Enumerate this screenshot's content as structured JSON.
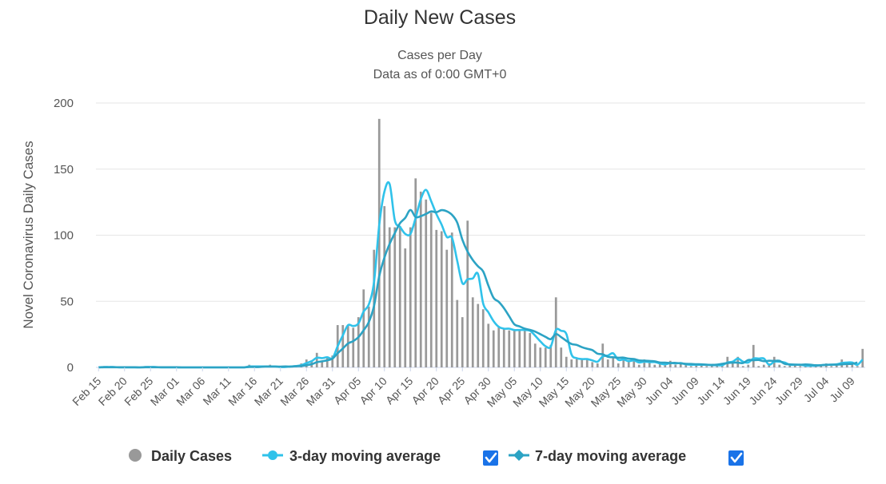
{
  "chart_data": {
    "type": "bar",
    "title": "Daily New Cases",
    "subtitle_lines": [
      "Cases per Day",
      "Data as of 0:00 GMT+0"
    ],
    "ylabel": "Novel Coronavirus Daily Cases",
    "xlabel": "",
    "ylim": [
      0,
      200
    ],
    "yticks": [
      0,
      50,
      100,
      150,
      200
    ],
    "x_tick_labels": [
      "Feb 15",
      "Feb 20",
      "Feb 25",
      "Mar 01",
      "Mar 06",
      "Mar 11",
      "Mar 16",
      "Mar 21",
      "Mar 26",
      "Mar 31",
      "Apr 05",
      "Apr 10",
      "Apr 15",
      "Apr 20",
      "Apr 25",
      "Apr 30",
      "May 05",
      "May 10",
      "May 15",
      "May 20",
      "May 25",
      "May 30",
      "Jun 04",
      "Jun 09",
      "Jun 14",
      "Jun 19",
      "Jun 24",
      "Jun 29",
      "Jul 04",
      "Jul 09"
    ],
    "start_date": "Feb 15",
    "day_count": 148,
    "series": [
      {
        "name": "Daily Cases",
        "kind": "bar",
        "color": "#999999",
        "values": [
          0,
          1,
          0,
          0,
          0,
          0,
          0,
          0,
          0,
          1,
          0,
          0,
          0,
          0,
          0,
          0,
          0,
          0,
          0,
          0,
          0,
          0,
          0,
          0,
          0,
          0,
          0,
          0,
          0,
          2,
          0,
          0,
          0,
          2,
          0,
          0,
          1,
          1,
          1,
          3,
          6,
          5,
          11,
          5,
          7,
          9,
          32,
          32,
          32,
          30,
          38,
          59,
          46,
          89,
          188,
          122,
          106,
          106,
          107,
          90,
          106,
          143,
          133,
          127,
          117,
          104,
          103,
          89,
          102,
          51,
          38,
          111,
          53,
          48,
          44,
          33,
          28,
          31,
          29,
          28,
          28,
          29,
          28,
          26,
          18,
          15,
          15,
          17,
          53,
          15,
          8,
          6,
          7,
          6,
          6,
          4,
          3,
          18,
          6,
          8,
          3,
          7,
          4,
          5,
          2,
          6,
          4,
          2,
          3,
          2,
          5,
          2,
          3,
          2,
          1,
          3,
          2,
          1,
          2,
          2,
          1,
          8,
          4,
          8,
          1,
          2,
          17,
          1,
          2,
          3,
          8,
          2,
          1,
          3,
          2,
          1,
          1,
          2,
          1,
          2,
          3,
          1,
          3,
          6,
          2,
          3,
          1,
          14
        ]
      },
      {
        "name": "3-day moving average",
        "kind": "line",
        "color": "#30c2ea",
        "checked": true,
        "values": [
          0,
          0.3,
          0.3,
          0.3,
          0,
          0,
          0,
          0,
          0,
          0.3,
          0.3,
          0.3,
          0,
          0,
          0,
          0,
          0,
          0,
          0,
          0,
          0,
          0,
          0,
          0,
          0,
          0,
          0,
          0,
          0,
          0.7,
          0.7,
          0.7,
          0.7,
          0.7,
          0.7,
          0.3,
          0.3,
          0.7,
          1,
          1.7,
          3.3,
          4.7,
          7.3,
          7,
          7.7,
          7,
          16,
          24.3,
          32,
          31.3,
          33.3,
          42.3,
          47.7,
          64.7,
          107.7,
          133,
          138.7,
          111.3,
          106.3,
          101,
          101,
          113,
          127.3,
          134.3,
          125.7,
          116,
          108,
          98.7,
          98,
          80.7,
          63.7,
          66.7,
          67.3,
          70.7,
          48.3,
          41.7,
          35,
          30.7,
          29.3,
          29.3,
          28.3,
          28.3,
          28.3,
          27.7,
          24,
          19.7,
          16,
          15.7,
          28.3,
          27.7,
          25.3,
          9.7,
          7,
          6.3,
          6.3,
          5.3,
          4.3,
          8.3,
          9,
          10.7,
          5.7,
          6,
          4.7,
          5.3,
          3.7,
          4.3,
          4,
          4,
          3,
          2.3,
          3.3,
          3,
          3.3,
          2.3,
          2,
          2,
          2,
          2,
          1.7,
          1.7,
          1.7,
          3.7,
          4.3,
          6.7,
          4.3,
          3.7,
          6.7,
          6.7,
          6.7,
          2,
          4.3,
          4.3,
          3.7,
          2,
          2,
          2,
          1.3,
          1.3,
          1.3,
          1.7,
          2,
          2,
          2.3,
          3.3,
          3.7,
          3.7,
          2,
          6
        ]
      },
      {
        "name": "7-day moving average",
        "kind": "line",
        "color": "#2ca3c4",
        "checked": true,
        "values": [
          0,
          0.1,
          0.1,
          0.1,
          0.1,
          0.1,
          0.1,
          0.1,
          0,
          0.1,
          0.1,
          0.1,
          0.1,
          0.1,
          0.1,
          0.1,
          0,
          0,
          0,
          0,
          0,
          0,
          0,
          0,
          0,
          0,
          0,
          0,
          0,
          0.3,
          0.3,
          0.3,
          0.6,
          0.6,
          0.6,
          0.6,
          0.7,
          0.6,
          0.9,
          1.1,
          1.7,
          2.4,
          3.9,
          4.6,
          5.4,
          6.6,
          10.7,
          14.3,
          18.1,
          19.9,
          22.9,
          28.1,
          34.3,
          46.6,
          69,
          83.1,
          93.4,
          101.6,
          109.1,
          113.1,
          119.1,
          113.7,
          114.4,
          116.1,
          118,
          117.4,
          119,
          118.1,
          115.4,
          109.6,
          96.6,
          87.6,
          81.3,
          76.5,
          72.6,
          61.9,
          52.6,
          49.6,
          44.8,
          38.7,
          32.6,
          31,
          29.3,
          28.4,
          27.1,
          25.1,
          23.1,
          21.4,
          25.2,
          22.9,
          20.1,
          17.7,
          17,
          15.3,
          14.1,
          13.1,
          10.4,
          9.9,
          8,
          7.7,
          7.3,
          7.4,
          6.6,
          6.3,
          5.3,
          5.1,
          4.9,
          4.6,
          3.7,
          3.6,
          3.3,
          3.4,
          3,
          2.7,
          2.6,
          2.4,
          2.3,
          2,
          1.9,
          2.1,
          2.7,
          3.3,
          3.6,
          3.6,
          3.3,
          5.6,
          5.4,
          5.6,
          4.7,
          5,
          4.9,
          5,
          2.7,
          2.3,
          2.1,
          2,
          2.2,
          2,
          1.6,
          1.6,
          1.9,
          2.1,
          2.1,
          2.3,
          2.6,
          2.7,
          3.7
        ]
      }
    ]
  },
  "legend": {
    "items": [
      {
        "label": "Daily Cases",
        "color": "#999999"
      },
      {
        "label": "3-day moving average",
        "color": "#30c2ea",
        "checked": true
      },
      {
        "label": "7-day moving average",
        "color": "#2ca3c4",
        "checked": true
      }
    ]
  }
}
